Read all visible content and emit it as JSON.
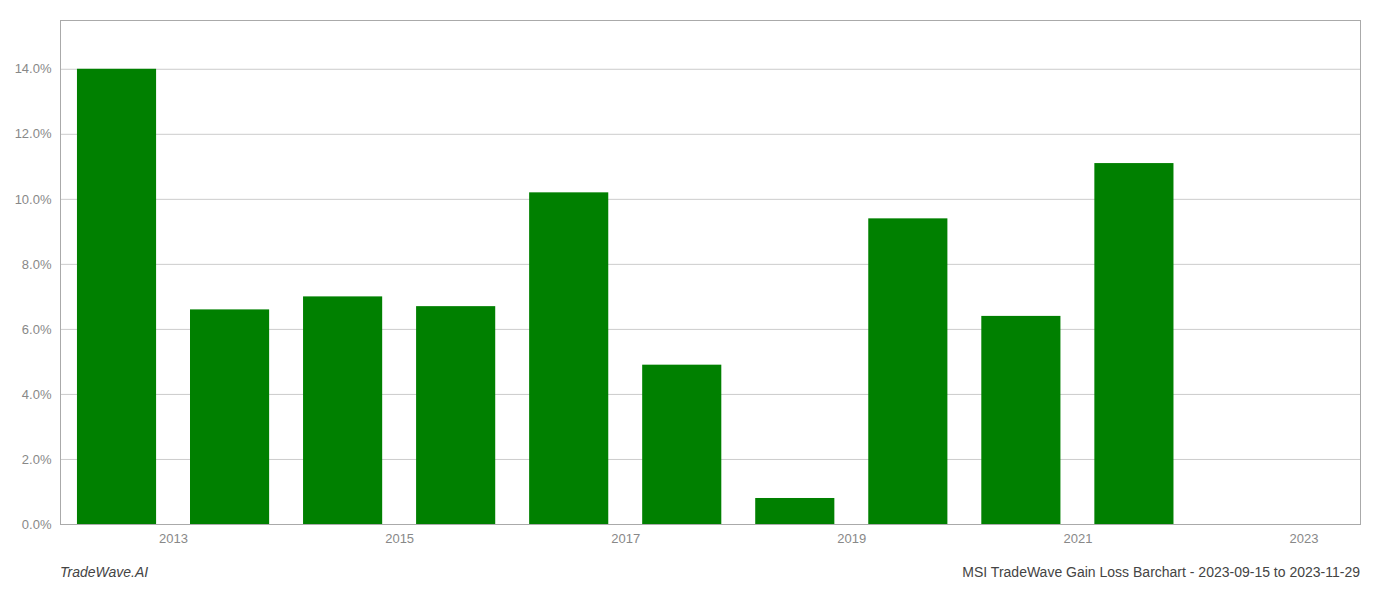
{
  "chart_data": {
    "type": "bar",
    "title": "MSI TradeWave Gain Loss Barchart - 2023-09-15 to 2023-11-29",
    "annotations": [
      "TradeWave.AI"
    ],
    "x": [
      2013,
      2014,
      2015,
      2016,
      2017,
      2018,
      2019,
      2020,
      2021,
      2022
    ],
    "values": [
      0.14,
      0.066,
      0.07,
      0.067,
      0.102,
      0.049,
      0.008,
      0.094,
      0.064,
      0.111
    ],
    "color": "#008000",
    "xlim": [
      2012.5,
      2024.0
    ],
    "xticks": [
      {
        "value": 2013.5,
        "label": "2013"
      },
      {
        "value": 2015.5,
        "label": "2015"
      },
      {
        "value": 2017.5,
        "label": "2017"
      },
      {
        "value": 2019.5,
        "label": "2019"
      },
      {
        "value": 2021.5,
        "label": "2021"
      },
      {
        "value": 2023.5,
        "label": "2023"
      }
    ],
    "ylim": [
      0,
      0.155
    ],
    "yticks": [
      {
        "value": 0.0,
        "label": "0.0%"
      },
      {
        "value": 0.02,
        "label": "2.0%"
      },
      {
        "value": 0.04,
        "label": "4.0%"
      },
      {
        "value": 0.06,
        "label": "6.0%"
      },
      {
        "value": 0.08,
        "label": "8.0%"
      },
      {
        "value": 0.1,
        "label": "10.0%"
      },
      {
        "value": 0.12,
        "label": "12.0%"
      },
      {
        "value": 0.14,
        "label": "14.0%"
      }
    ],
    "grid": true
  }
}
